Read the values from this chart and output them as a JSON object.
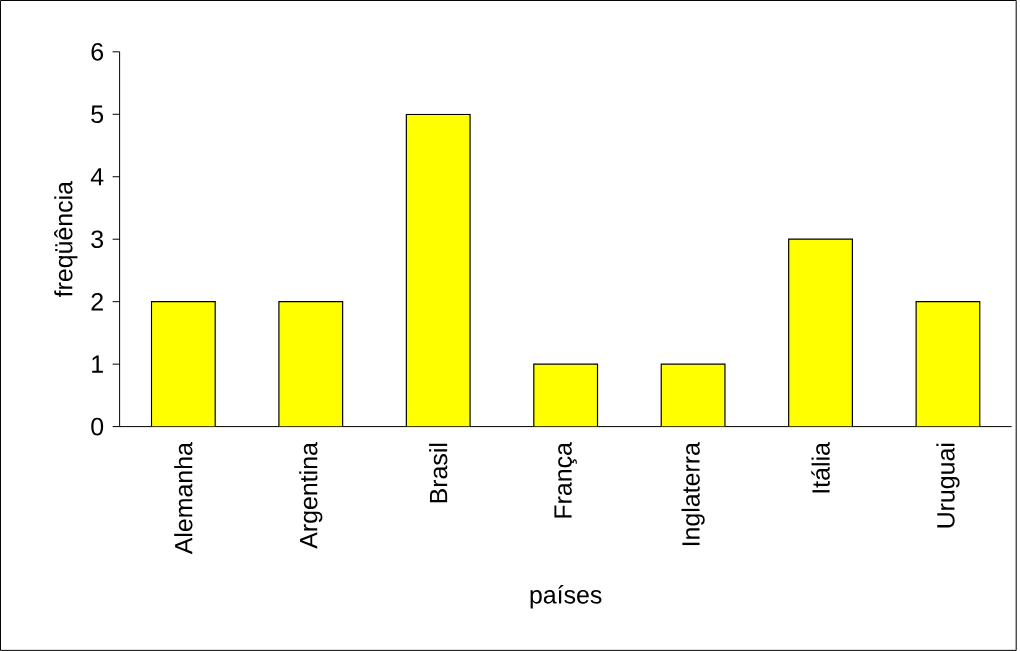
{
  "chart_data": {
    "type": "bar",
    "xlabel": "países",
    "ylabel": "freqüência",
    "categories": [
      "Alemanha",
      "Argentina",
      "Brasil",
      "França",
      "Inglaterra",
      "Itália",
      "Uruguai"
    ],
    "values": [
      2,
      2,
      5,
      1,
      1,
      3,
      2
    ],
    "color": "#ffff00",
    "ylim": [
      0,
      6
    ],
    "yticks": [
      0,
      1,
      2,
      3,
      4,
      5,
      6
    ]
  }
}
